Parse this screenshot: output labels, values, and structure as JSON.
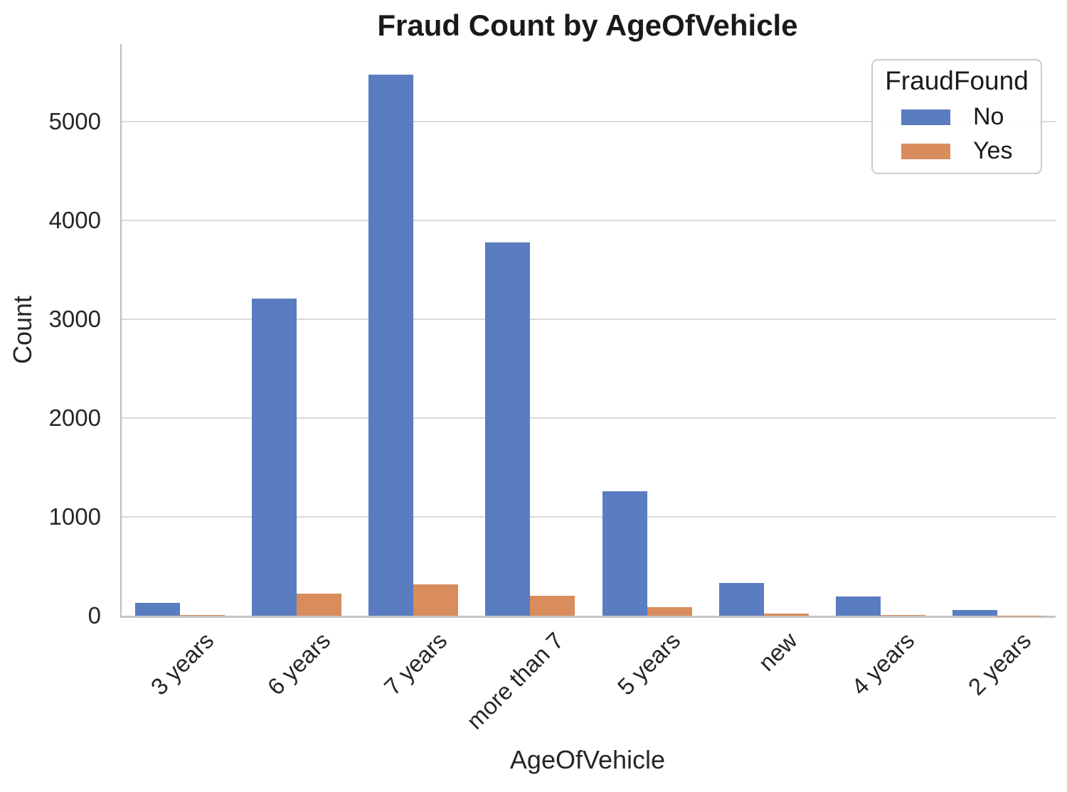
{
  "title": "Fraud Count by AgeOfVehicle",
  "xlabel": "AgeOfVehicle",
  "ylabel": "Count",
  "legend": {
    "title": "FraudFound",
    "items": [
      {
        "label": "No"
      },
      {
        "label": "Yes"
      }
    ]
  },
  "colors": {
    "no_bar": "#5a7cc0",
    "yes_bar": "#d98c5c",
    "gridline": "#d9d9d9",
    "spine": "#c3c3c3",
    "text": "#262626"
  },
  "chart_data": {
    "type": "bar",
    "title": "Fraud Count by AgeOfVehicle",
    "xlabel": "AgeOfVehicle",
    "ylabel": "Count",
    "categories": [
      "3 years",
      "6 years",
      "7 years",
      "more than 7",
      "5 years",
      "new",
      "4 years",
      "2 years"
    ],
    "series": [
      {
        "name": "No",
        "color": "#5a7cc0",
        "values": [
          130,
          3210,
          5470,
          3775,
          1255,
          330,
          195,
          60
        ]
      },
      {
        "name": "Yes",
        "color": "#d98c5c",
        "values": [
          5,
          220,
          315,
          200,
          85,
          25,
          10,
          3
        ]
      }
    ],
    "yticks": [
      0,
      1000,
      2000,
      3000,
      4000,
      5000
    ],
    "ylim": [
      0,
      5780
    ],
    "grid": "horizontal",
    "legend_position": "upper right"
  }
}
